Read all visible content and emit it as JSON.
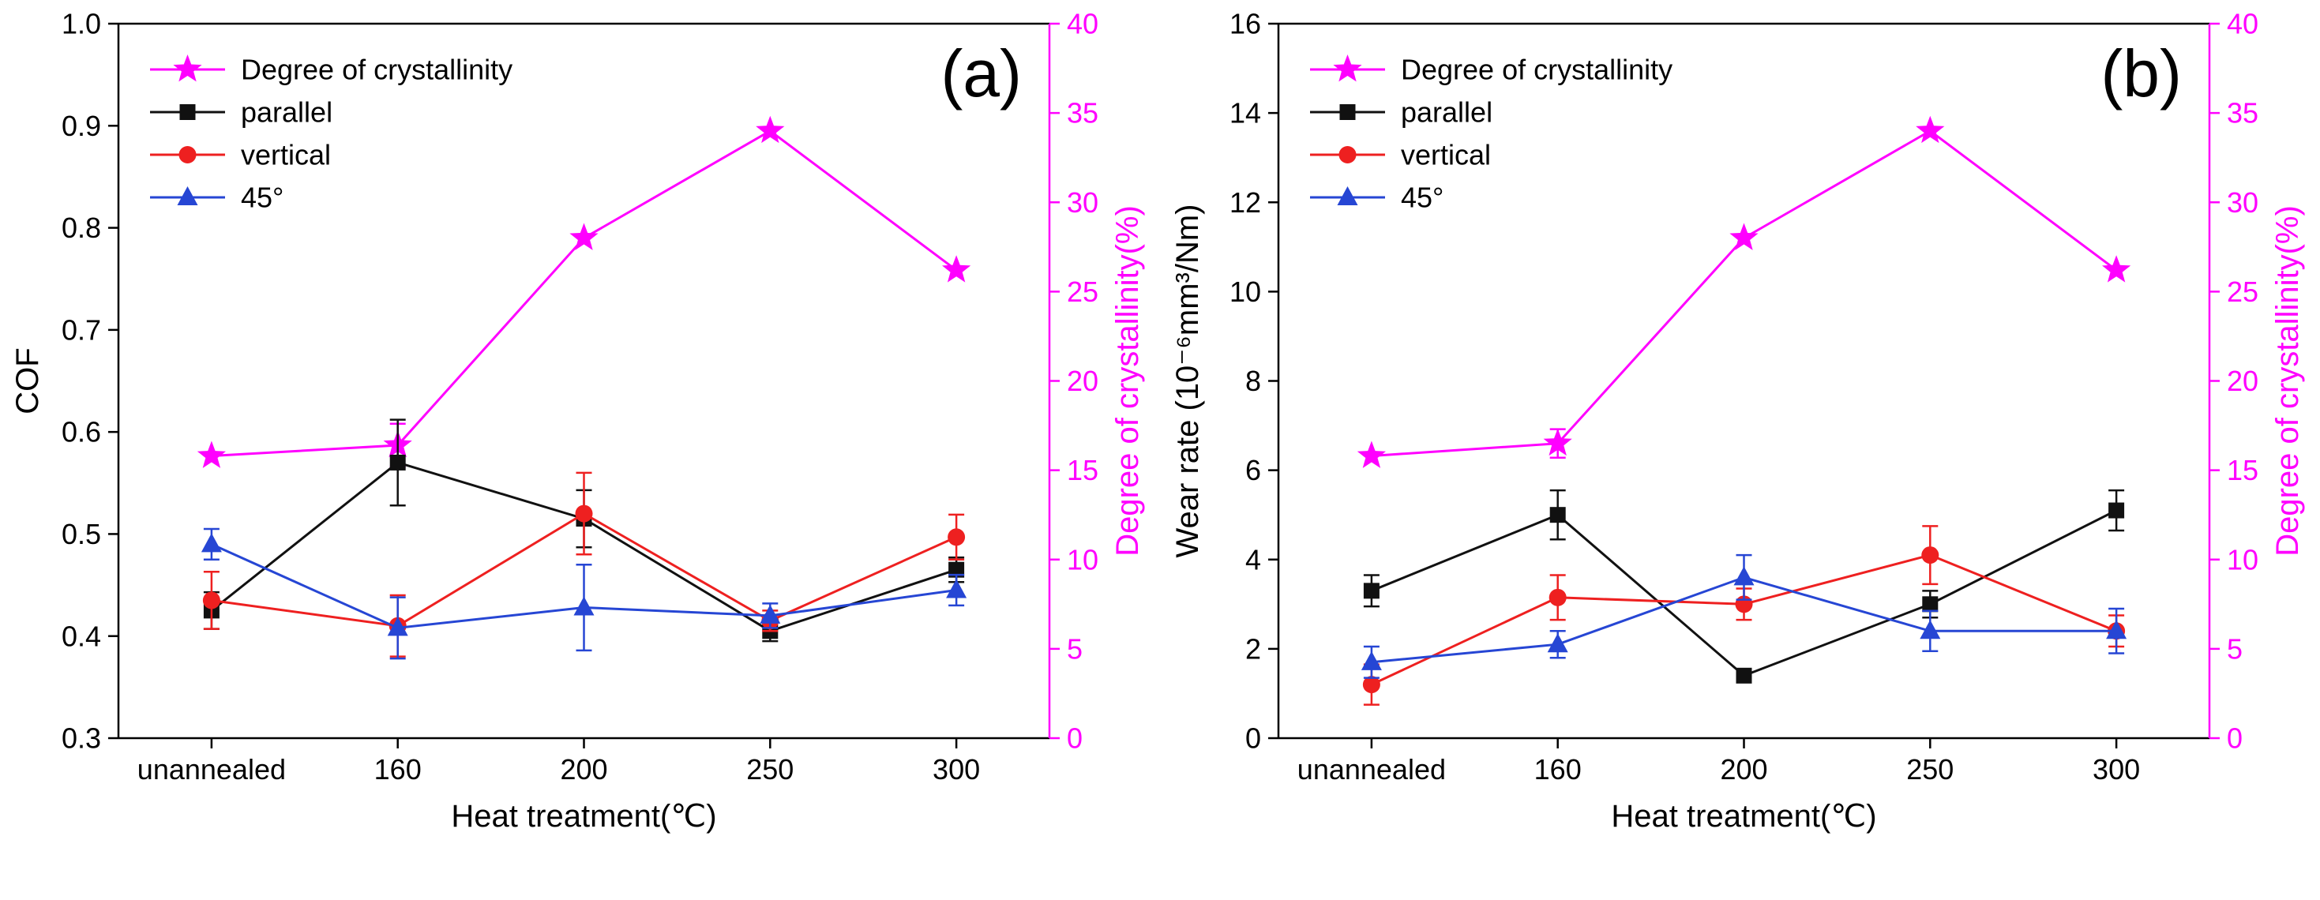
{
  "figure": {
    "background": "#ffffff",
    "accent_magenta": "#ff00ff"
  },
  "chart_data": [
    {
      "type": "line",
      "panel_label": "(a)",
      "categories": [
        "unannealed",
        "160",
        "200",
        "250",
        "300"
      ],
      "xlabel": "Heat treatment(℃)",
      "legend_position": "top-left",
      "grid": false,
      "y_left": {
        "label": "COF",
        "min": 0.3,
        "max": 1.0,
        "ticks": [
          0.3,
          0.4,
          0.5,
          0.6,
          0.7,
          0.8,
          0.9,
          1.0
        ],
        "tick_labels": [
          "0.3",
          "0.4",
          "0.5",
          "0.6",
          "0.7",
          "0.8",
          "0.9",
          "1.0"
        ],
        "color": "#000000"
      },
      "y_right": {
        "label": "Degree of crystallinity(%)",
        "min": 0,
        "max": 40,
        "ticks": [
          0,
          5,
          10,
          15,
          20,
          25,
          30,
          35,
          40
        ],
        "tick_labels": [
          "0",
          "5",
          "10",
          "15",
          "20",
          "25",
          "30",
          "35",
          "40"
        ],
        "color": "#ff00ff"
      },
      "series": [
        {
          "name": "Degree of crystallinity",
          "axis": "right",
          "marker": "star",
          "color": "#ff00ff",
          "values": [
            15.8,
            16.4,
            28.0,
            34.0,
            26.2
          ],
          "errors": [
            0,
            1.2,
            0,
            0,
            0
          ]
        },
        {
          "name": "parallel",
          "axis": "left",
          "marker": "square",
          "color": "#111111",
          "values": [
            0.425,
            0.57,
            0.515,
            0.405,
            0.465
          ],
          "errors": [
            0.018,
            0.042,
            0.028,
            0.01,
            0.012
          ]
        },
        {
          "name": "vertical",
          "axis": "left",
          "marker": "circle",
          "color": "#ee2020",
          "values": [
            0.435,
            0.41,
            0.52,
            0.415,
            0.497
          ],
          "errors": [
            0.028,
            0.03,
            0.04,
            0.01,
            0.022
          ]
        },
        {
          "name": "45°",
          "axis": "left",
          "marker": "triangle",
          "color": "#2646d4",
          "values": [
            0.49,
            0.408,
            0.428,
            0.42,
            0.445
          ],
          "errors": [
            0.015,
            0.03,
            0.042,
            0.012,
            0.015
          ]
        }
      ]
    },
    {
      "type": "line",
      "panel_label": "(b)",
      "categories": [
        "unannealed",
        "160",
        "200",
        "250",
        "300"
      ],
      "xlabel": "Heat treatment(℃)",
      "legend_position": "top-left",
      "grid": false,
      "y_left": {
        "label": "Wear rate (10⁻⁶mm³/Nm)",
        "min": 0,
        "max": 16,
        "ticks": [
          0,
          2,
          4,
          6,
          8,
          10,
          12,
          14,
          16
        ],
        "tick_labels": [
          "0",
          "2",
          "4",
          "6",
          "8",
          "10",
          "12",
          "14",
          "16"
        ],
        "color": "#000000"
      },
      "y_right": {
        "label": "Degree of crystallinity(%)",
        "min": 0,
        "max": 40,
        "ticks": [
          0,
          5,
          10,
          15,
          20,
          25,
          30,
          35,
          40
        ],
        "tick_labels": [
          "0",
          "5",
          "10",
          "15",
          "20",
          "25",
          "30",
          "35",
          "40"
        ],
        "color": "#ff00ff"
      },
      "series": [
        {
          "name": "Degree of crystallinity",
          "axis": "right",
          "marker": "star",
          "color": "#ff00ff",
          "values": [
            15.8,
            16.5,
            28.0,
            34.0,
            26.2
          ],
          "errors": [
            0,
            0.8,
            0,
            0,
            0
          ]
        },
        {
          "name": "parallel",
          "axis": "left",
          "marker": "square",
          "color": "#111111",
          "values": [
            3.3,
            5.0,
            1.4,
            3.0,
            5.1
          ],
          "errors": [
            0.35,
            0.55,
            0.12,
            0.3,
            0.45
          ]
        },
        {
          "name": "vertical",
          "axis": "left",
          "marker": "circle",
          "color": "#ee2020",
          "values": [
            1.2,
            3.15,
            3.0,
            4.1,
            2.4
          ],
          "errors": [
            0.45,
            0.5,
            0.35,
            0.65,
            0.35
          ]
        },
        {
          "name": "45°",
          "axis": "left",
          "marker": "triangle",
          "color": "#2646d4",
          "values": [
            1.7,
            2.1,
            3.6,
            2.4,
            2.4
          ],
          "errors": [
            0.35,
            0.3,
            0.5,
            0.45,
            0.5
          ]
        }
      ]
    }
  ]
}
